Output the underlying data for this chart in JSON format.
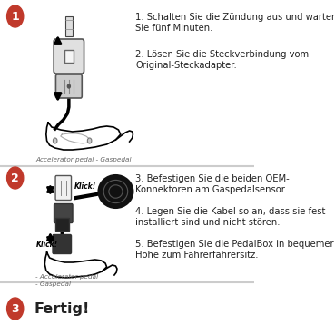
{
  "bg_color": "#ffffff",
  "divider_color": "#cccccc",
  "circle_color": "#c0392b",
  "circle_text_color": "#ffffff",
  "text_color": "#222222",
  "text1_line1": "1. Schalten Sie die Zündung aus und warten",
  "text1_line2": "Sie fünf Minuten.",
  "text2_line1": "2. Lösen Sie die Steckverbindung vom",
  "text2_line2": "Original-Steckadapter.",
  "text3_line1": "3. Befestigen Sie die beiden OEM-",
  "text3_line2": "Konnektoren am Gaspedalsensor.",
  "text4_line1": "4. Legen Sie die Kabel so an, dass sie fest",
  "text4_line2": "installiert sind und nicht stören.",
  "text5_line1": "5. Befestigen Sie die PedalBox in bequemer",
  "text5_line2": "Höhe zum Fahrerfahrersitz.",
  "caption1": "Accelerator pedal - Gaspedal",
  "caption2_line1": "- Accelerator pedal",
  "caption2_line2": "- Gaspedal",
  "fertig_text": "Fertig!",
  "font_size_main": 7.2,
  "font_size_caption": 5.2,
  "font_size_fertig": 11.5,
  "font_size_circle": 9
}
